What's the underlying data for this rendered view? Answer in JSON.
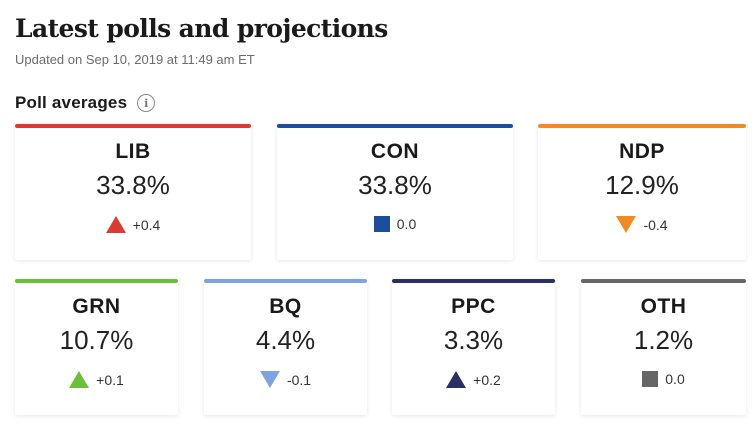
{
  "header": {
    "title": "Latest polls and projections",
    "updated": "Updated on Sep 10, 2019 at 11:49 am ET"
  },
  "section": {
    "title": "Poll averages",
    "info_icon": "info-icon",
    "info_glyph": "i"
  },
  "parties": [
    {
      "name": "LIB",
      "value": "33.8%",
      "change": "+0.4",
      "direction": "up",
      "color": "#d93a32"
    },
    {
      "name": "CON",
      "value": "33.8%",
      "change": "0.0",
      "direction": "none",
      "color": "#1b4f9c"
    },
    {
      "name": "NDP",
      "value": "12.9%",
      "change": "-0.4",
      "direction": "down",
      "color": "#f08a24"
    },
    {
      "name": "GRN",
      "value": "10.7%",
      "change": "+0.1",
      "direction": "up",
      "color": "#6cbf3a"
    },
    {
      "name": "BQ",
      "value": "4.4%",
      "change": "-0.1",
      "direction": "down",
      "color": "#7fa3e0"
    },
    {
      "name": "PPC",
      "value": "3.3%",
      "change": "+0.2",
      "direction": "up",
      "color": "#2a2f66"
    },
    {
      "name": "OTH",
      "value": "1.2%",
      "change": "0.0",
      "direction": "none",
      "color": "#666666"
    }
  ]
}
